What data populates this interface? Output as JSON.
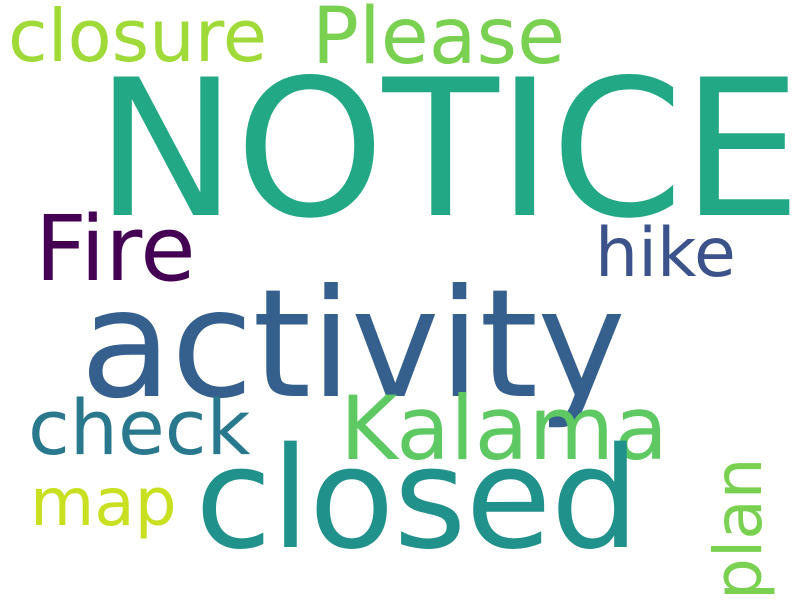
{
  "word_cloud": {
    "words": [
      {
        "id": "notice",
        "text": "NOTICE",
        "color": "#22a884"
      },
      {
        "id": "activity",
        "text": "activity",
        "color": "#355f8d"
      },
      {
        "id": "closed",
        "text": "closed",
        "color": "#21918c"
      },
      {
        "id": "kalama",
        "text": "Kalama",
        "color": "#5ec962"
      },
      {
        "id": "fire",
        "text": "Fire",
        "color": "#440154"
      },
      {
        "id": "check",
        "text": "check",
        "color": "#2a788e"
      },
      {
        "id": "hike",
        "text": "hike",
        "color": "#3b528b"
      },
      {
        "id": "closure",
        "text": "closure",
        "color": "#a0da39"
      },
      {
        "id": "please",
        "text": "Please",
        "color": "#7ad151"
      },
      {
        "id": "map",
        "text": "map",
        "color": "#c8e020"
      },
      {
        "id": "plan",
        "text": "plan",
        "color": "#7ad151"
      }
    ]
  }
}
